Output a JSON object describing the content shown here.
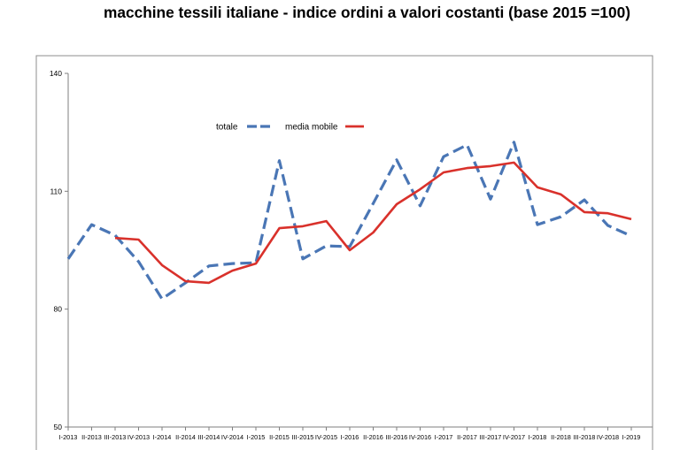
{
  "chart_data": {
    "type": "line",
    "title": "macchine tessili italiane - indice ordini a valori costanti (base 2015 =100)",
    "xlabel": "",
    "ylabel": "",
    "categories": [
      "I-2013",
      "II-2013",
      "III-2013",
      "IV-2013",
      "I-2014",
      "II-2014",
      "III-2014",
      "IV-2014",
      "I-2015",
      "II-2015",
      "III-2015",
      "IV-2015",
      "I-2016",
      "II-2016",
      "III-2016",
      "IV-2016",
      "I-2017",
      "II-2017",
      "III-2017",
      "IV-2017",
      "I-2018",
      "II-2018",
      "III-2018",
      "IV-2018",
      "I-2019"
    ],
    "series": [
      {
        "name": "totale",
        "color": "#4a76b5",
        "dashed": true,
        "values": [
          92.8,
          101.5,
          98.8,
          92.1,
          82.6,
          86.7,
          91.0,
          91.6,
          91.8,
          117.8,
          92.8,
          96.1,
          95.9,
          106.9,
          118.0,
          106.3,
          118.8,
          121.8,
          108.0,
          122.5,
          101.5,
          103.5,
          107.8,
          101.3,
          98.6
        ]
      },
      {
        "name": "media mobile",
        "color": "#d9312b",
        "dashed": false,
        "values": [
          null,
          null,
          98.1,
          97.7,
          91.2,
          87.1,
          86.7,
          89.8,
          91.6,
          100.6,
          101.1,
          102.4,
          95.0,
          99.5,
          106.7,
          110.5,
          114.8,
          115.9,
          116.4,
          117.3,
          111.0,
          109.2,
          104.7,
          104.4,
          102.9
        ]
      }
    ],
    "ylim": [
      50,
      140
    ],
    "yticks": [
      50,
      80,
      110,
      140
    ],
    "grid": false,
    "legend": "top-center"
  }
}
